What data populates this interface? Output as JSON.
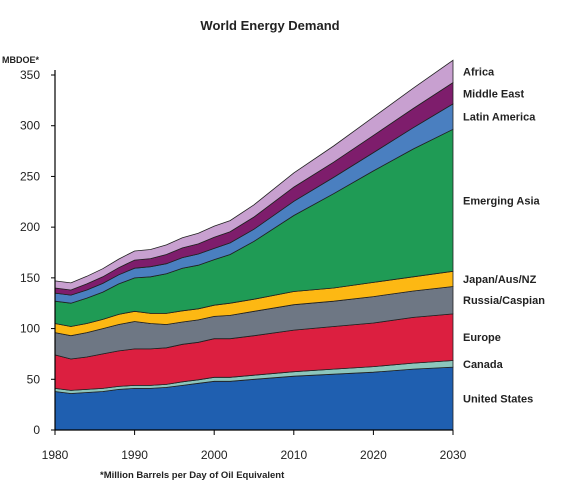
{
  "chart_data": {
    "type": "area",
    "stacked": true,
    "title": "World Energy Demand",
    "ylabel": "MBDOE*",
    "xlabel": "",
    "footnote": "*Million Barrels per Day of Oil Equivalent",
    "xlim": [
      1980,
      2030
    ],
    "ylim": [
      0,
      350
    ],
    "x_ticks": [
      1980,
      1990,
      2000,
      2010,
      2020,
      2030
    ],
    "y_ticks": [
      0,
      50,
      100,
      150,
      200,
      250,
      300,
      350
    ],
    "grid": false,
    "legend_position": "right",
    "x": [
      1980,
      1982,
      1984,
      1986,
      1988,
      1990,
      1992,
      1994,
      1996,
      1998,
      2000,
      2002,
      2005,
      2010,
      2015,
      2020,
      2025,
      2030
    ],
    "series": [
      {
        "name": "United States",
        "color": "#1f5fb0",
        "values": [
          38,
          36,
          37,
          38,
          40,
          41,
          41,
          42,
          44,
          46,
          48,
          48,
          50,
          53,
          55,
          57,
          60,
          62
        ]
      },
      {
        "name": "Canada",
        "color": "#8cc6bc",
        "values": [
          3,
          3,
          3,
          3,
          3,
          3,
          3,
          3,
          3.5,
          3.5,
          4,
          4,
          4,
          4.5,
          5,
          5.5,
          6,
          6.5
        ]
      },
      {
        "name": "Europe",
        "color": "#dc1f40",
        "values": [
          33,
          31,
          32,
          34,
          35,
          36,
          36,
          36,
          37,
          37,
          38,
          38,
          39,
          41,
          42,
          43,
          45,
          46
        ]
      },
      {
        "name": "Russia/Caspian",
        "color": "#6e7784",
        "values": [
          22,
          23,
          24,
          25,
          26,
          27,
          25,
          23,
          22,
          22,
          22,
          23,
          24,
          25,
          25,
          26,
          26,
          27
        ]
      },
      {
        "name": "Japan/Aus/NZ",
        "color": "#fdb813",
        "values": [
          9,
          9,
          9,
          9,
          10,
          10,
          10,
          11,
          11,
          11,
          11,
          12,
          12,
          13,
          13,
          14,
          14,
          15
        ]
      },
      {
        "name": "Emerging Asia",
        "color": "#1f9b55",
        "values": [
          22,
          23,
          25,
          27,
          30,
          33,
          36,
          39,
          42,
          43,
          45,
          48,
          57,
          75,
          93,
          110,
          126,
          140
        ]
      },
      {
        "name": "Latin America",
        "color": "#4a7fc0",
        "values": [
          8,
          8,
          8,
          8.5,
          9,
          9.5,
          10,
          10,
          10.5,
          11,
          11,
          11.5,
          12,
          14,
          16,
          18,
          21,
          25
        ]
      },
      {
        "name": "Middle East",
        "color": "#7e1d6c",
        "values": [
          5,
          5,
          6,
          6.5,
          7,
          8,
          8,
          9,
          9.5,
          10,
          11,
          11,
          12,
          14,
          15,
          17,
          19,
          21
        ]
      },
      {
        "name": "Africa",
        "color": "#c8a0d0",
        "values": [
          7,
          7,
          7.5,
          8,
          8.5,
          9,
          9,
          9.5,
          10,
          10.5,
          11,
          11,
          12,
          14,
          16,
          18,
          20,
          22
        ]
      }
    ]
  }
}
